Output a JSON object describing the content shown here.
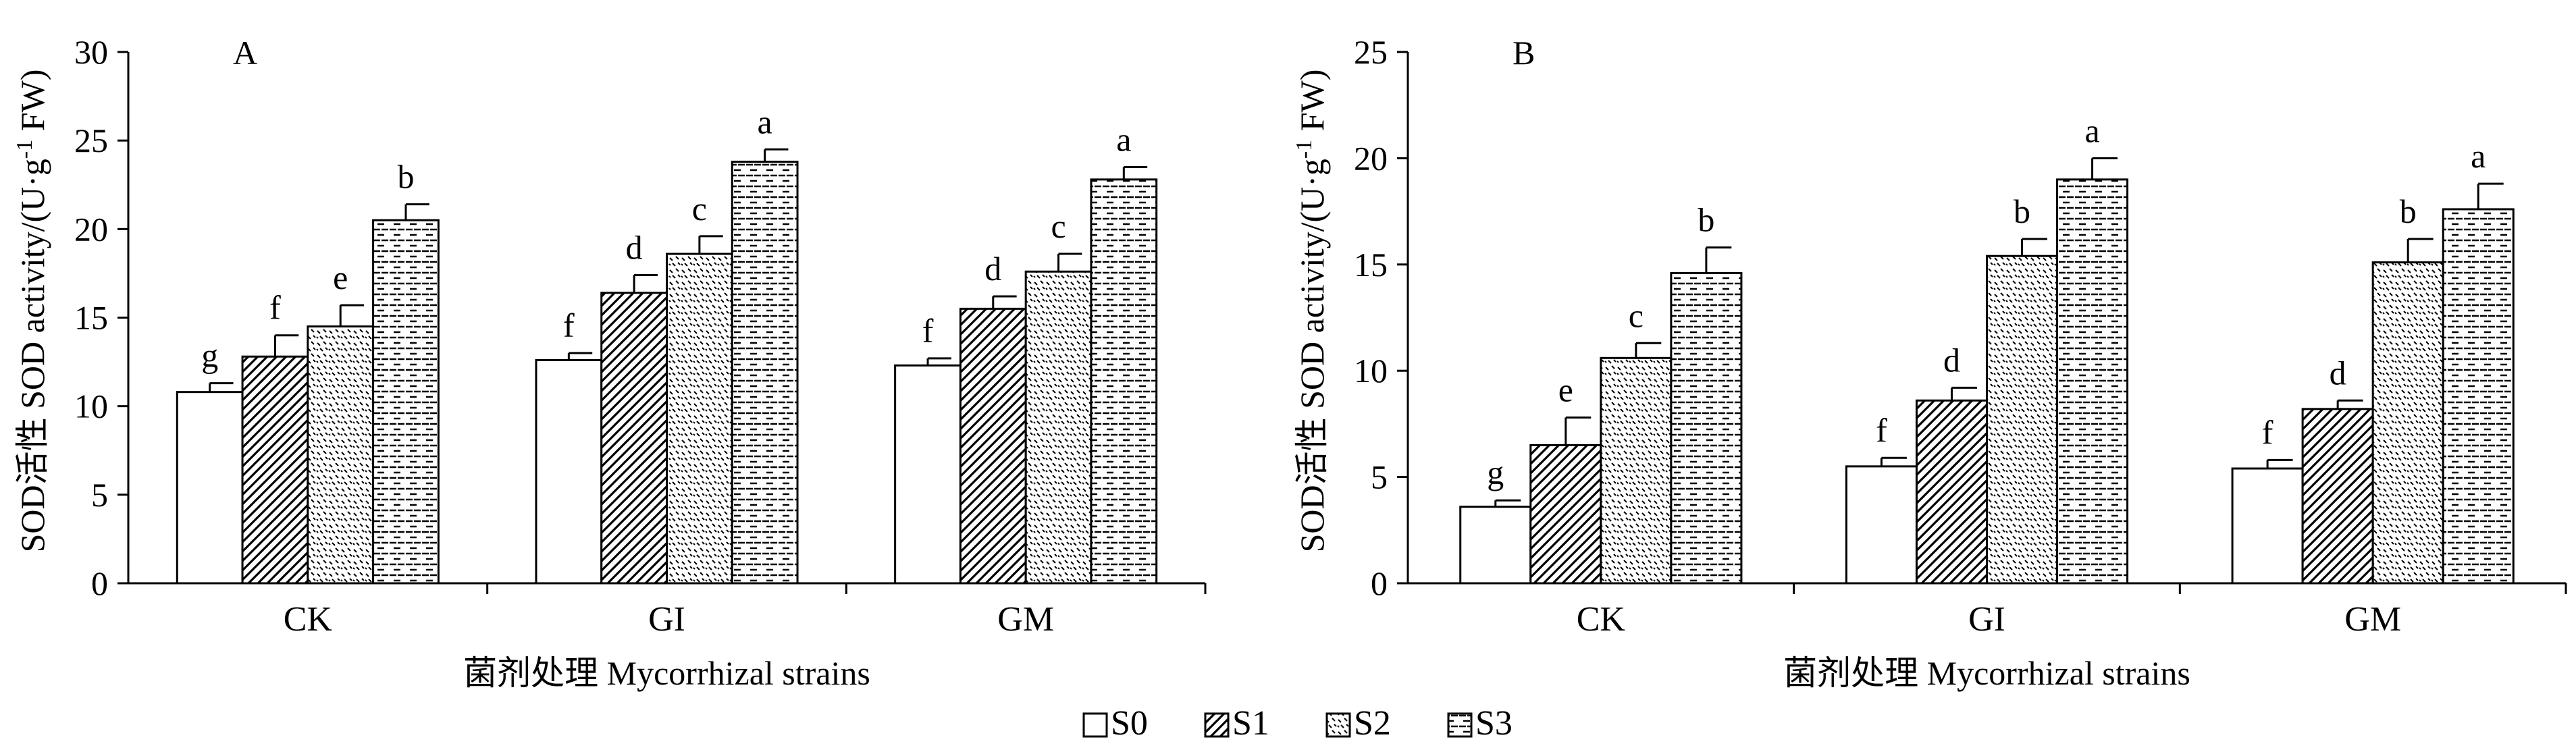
{
  "legend": [
    "S0",
    "S1",
    "S2",
    "S3"
  ],
  "chart_data": [
    {
      "type": "bar",
      "panel_label": "A",
      "ylabel": "SOD活性 SOD activity/(U·g⁻¹ FW)",
      "ylabel_prefix": "SOD活性 SOD activity/(U·g",
      "ylabel_sup": "-1",
      "ylabel_suffix": " FW)",
      "xlabel": "菌剂处理 Mycorrhizal strains",
      "ylim": [
        0,
        30
      ],
      "yticks": [
        "0",
        "5",
        "10",
        "15",
        "20",
        "25",
        "30"
      ],
      "categories": [
        "CK",
        "GI",
        "GM"
      ],
      "series": [
        {
          "name": "S0",
          "values": [
            10.8,
            12.6,
            12.3
          ],
          "errors": [
            0.5,
            0.4,
            0.4
          ],
          "letters": [
            "g",
            "f",
            "f"
          ]
        },
        {
          "name": "S1",
          "values": [
            12.8,
            16.4,
            15.5
          ],
          "errors": [
            1.2,
            1.0,
            0.7
          ],
          "letters": [
            "f",
            "d",
            "d"
          ]
        },
        {
          "name": "S2",
          "values": [
            14.5,
            18.6,
            17.6
          ],
          "errors": [
            1.2,
            1.0,
            1.0
          ],
          "letters": [
            "e",
            "c",
            "c"
          ]
        },
        {
          "name": "S3",
          "values": [
            20.5,
            23.8,
            22.8
          ],
          "errors": [
            0.9,
            0.7,
            0.7
          ],
          "letters": [
            "b",
            "a",
            "a"
          ]
        }
      ]
    },
    {
      "type": "bar",
      "panel_label": "B",
      "ylabel": "SOD活性 SOD activity/(U·g⁻¹ FW)",
      "ylabel_prefix": "SOD活性 SOD activity/(U·g",
      "ylabel_sup": "-1",
      "ylabel_suffix": " FW)",
      "xlabel": "菌剂处理 Mycorrhizal strains",
      "ylim": [
        0,
        25
      ],
      "yticks": [
        "0",
        "5",
        "10",
        "15",
        "20",
        "25"
      ],
      "categories": [
        "CK",
        "GI",
        "GM"
      ],
      "series": [
        {
          "name": "S0",
          "values": [
            3.6,
            5.5,
            5.4
          ],
          "errors": [
            0.3,
            0.4,
            0.4
          ],
          "letters": [
            "g",
            "f",
            "f"
          ]
        },
        {
          "name": "S1",
          "values": [
            6.5,
            8.6,
            8.2
          ],
          "errors": [
            1.3,
            0.6,
            0.4
          ],
          "letters": [
            "e",
            "d",
            "d"
          ]
        },
        {
          "name": "S2",
          "values": [
            10.6,
            15.4,
            15.1
          ],
          "errors": [
            0.7,
            0.8,
            1.1
          ],
          "letters": [
            "c",
            "b",
            "b"
          ]
        },
        {
          "name": "S3",
          "values": [
            14.6,
            19.0,
            17.6
          ],
          "errors": [
            1.2,
            1.0,
            1.2
          ],
          "letters": [
            "b",
            "a",
            "a"
          ]
        }
      ]
    }
  ]
}
